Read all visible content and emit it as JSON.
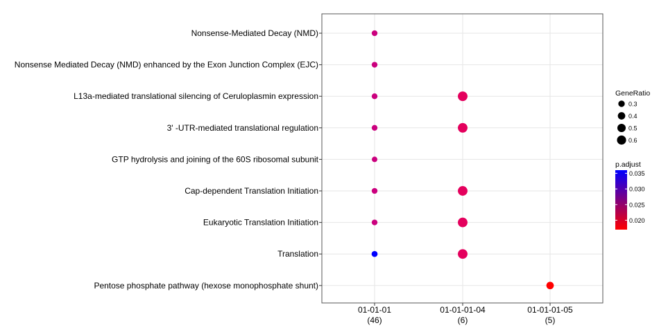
{
  "chart_data": {
    "type": "scatter",
    "x_categories": [
      {
        "label": "01-01-01",
        "count": "(46)"
      },
      {
        "label": "01-01-01-04",
        "count": "(6)"
      },
      {
        "label": "01-01-01-05",
        "count": "(5)"
      }
    ],
    "y_categories": [
      "Nonsense-Mediated Decay (NMD)",
      "Nonsense Mediated Decay (NMD) enhanced by the Exon Junction Complex (EJC)",
      "L13a-mediated translational silencing of Ceruloplasmin expression",
      "3' -UTR-mediated translational regulation",
      "GTP hydrolysis and joining of the 60S ribosomal subunit",
      "Cap-dependent Translation Initiation",
      "Eukaryotic Translation Initiation",
      "Translation",
      "Pentose phosphate pathway (hexose monophosphate shunt)"
    ],
    "points": [
      {
        "x": "01-01-01",
        "y": "Nonsense-Mediated Decay (NMD)",
        "gene_ratio": 0.24,
        "p_adjust": 0.027
      },
      {
        "x": "01-01-01",
        "y": "Nonsense Mediated Decay (NMD) enhanced by the Exon Junction Complex (EJC)",
        "gene_ratio": 0.24,
        "p_adjust": 0.027
      },
      {
        "x": "01-01-01",
        "y": "L13a-mediated translational silencing of Ceruloplasmin expression",
        "gene_ratio": 0.24,
        "p_adjust": 0.027
      },
      {
        "x": "01-01-01",
        "y": "3' -UTR-mediated translational regulation",
        "gene_ratio": 0.24,
        "p_adjust": 0.027
      },
      {
        "x": "01-01-01",
        "y": "GTP hydrolysis and joining of the 60S ribosomal subunit",
        "gene_ratio": 0.22,
        "p_adjust": 0.027
      },
      {
        "x": "01-01-01",
        "y": "Cap-dependent Translation Initiation",
        "gene_ratio": 0.24,
        "p_adjust": 0.027
      },
      {
        "x": "01-01-01",
        "y": "Eukaryotic Translation Initiation",
        "gene_ratio": 0.24,
        "p_adjust": 0.027
      },
      {
        "x": "01-01-01",
        "y": "Translation",
        "gene_ratio": 0.26,
        "p_adjust": 0.036
      },
      {
        "x": "01-01-01-04",
        "y": "L13a-mediated translational silencing of Ceruloplasmin expression",
        "gene_ratio": 0.67,
        "p_adjust": 0.023
      },
      {
        "x": "01-01-01-04",
        "y": "3' -UTR-mediated translational regulation",
        "gene_ratio": 0.67,
        "p_adjust": 0.023
      },
      {
        "x": "01-01-01-04",
        "y": "Cap-dependent Translation Initiation",
        "gene_ratio": 0.67,
        "p_adjust": 0.023
      },
      {
        "x": "01-01-01-04",
        "y": "Eukaryotic Translation Initiation",
        "gene_ratio": 0.67,
        "p_adjust": 0.023
      },
      {
        "x": "01-01-01-04",
        "y": "Translation",
        "gene_ratio": 0.67,
        "p_adjust": 0.023
      },
      {
        "x": "01-01-01-05",
        "y": "Pentose phosphate pathway (hexose monophosphate shunt)",
        "gene_ratio": 0.4,
        "p_adjust": 0.017
      }
    ],
    "grid": true,
    "legend_placement": "right",
    "legends": {
      "size": {
        "title": "GeneRatio",
        "breaks": [
          0.3,
          0.4,
          0.5,
          0.6
        ],
        "labels": [
          "0.3",
          "0.4",
          "0.5",
          "0.6"
        ]
      },
      "color": {
        "title": "p.adjust",
        "breaks": [
          0.02,
          0.025,
          0.03,
          0.035
        ],
        "labels": [
          "0.020",
          "0.025",
          "0.030",
          "0.035"
        ],
        "range": [
          0.017,
          0.036
        ],
        "low_color": "#ff0000",
        "high_color": "#0000ff"
      }
    }
  }
}
